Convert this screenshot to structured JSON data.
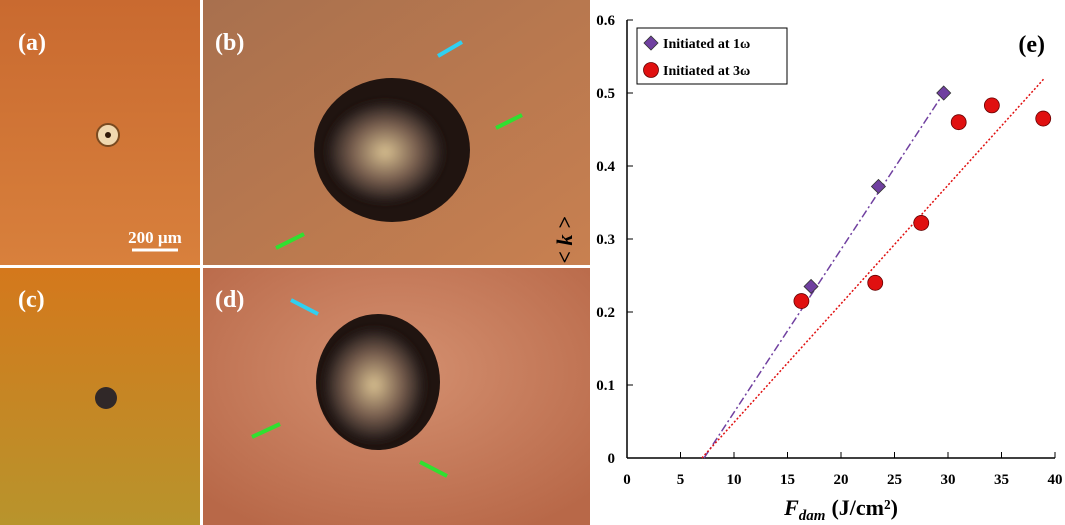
{
  "panels": {
    "a": "(a)",
    "b": "(b)",
    "c": "(c)",
    "d": "(d)",
    "scale_bar": "200 µm"
  },
  "chart_data": {
    "type": "scatter",
    "panel_label": "(e)",
    "y_label": "< k >",
    "x_label": "F",
    "x_label_sub": "dam",
    "x_label_unit": "(J/cm²)",
    "xlim": [
      0,
      40
    ],
    "xticks": [
      0,
      5,
      10,
      15,
      20,
      25,
      30,
      35,
      40
    ],
    "ylim": [
      0,
      0.6
    ],
    "yticks": [
      0,
      0.1,
      0.2,
      0.3,
      0.4,
      0.5,
      0.6
    ],
    "legend": "upper left",
    "series": [
      {
        "name": "Initiated at 1ω",
        "color": "#7040a0",
        "marker": "diamond",
        "x": [
          17.2,
          23.5,
          29.6
        ],
        "y": [
          0.235,
          0.372,
          0.5
        ]
      },
      {
        "name": "Initiated at 3ω",
        "color": "#e01010",
        "marker": "circle",
        "x": [
          16.3,
          23.2,
          27.5,
          31,
          34.1,
          38.9
        ],
        "y": [
          0.215,
          0.24,
          0.322,
          0.46,
          0.483,
          0.465
        ]
      }
    ],
    "fit_lines": [
      {
        "color": "#7040a0",
        "dash": "dashdot",
        "x": [
          7.2,
          29.6
        ],
        "y": [
          0,
          0.5
        ]
      },
      {
        "color": "#e01010",
        "dash": "dotted",
        "x": [
          7,
          39
        ],
        "y": [
          0,
          0.52
        ]
      }
    ]
  }
}
